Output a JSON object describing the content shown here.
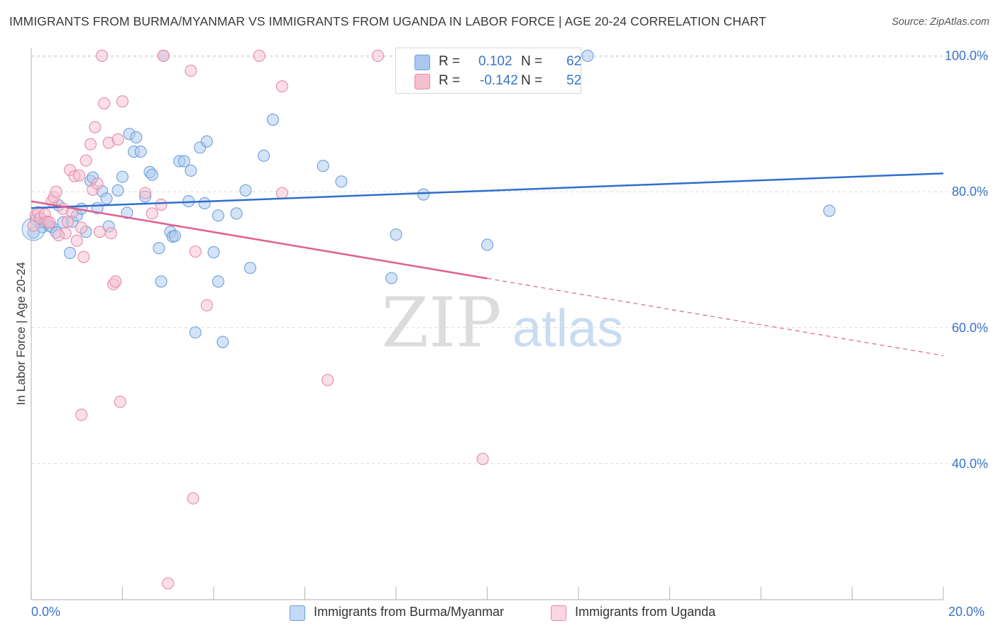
{
  "title": "IMMIGRANTS FROM BURMA/MYANMAR VS IMMIGRANTS FROM UGANDA IN LABOR FORCE | AGE 20-24 CORRELATION CHART",
  "source": "Source: ZipAtlas.com",
  "watermark": {
    "zip": "ZIP",
    "atlas": "atlas"
  },
  "legend": {
    "r_label": "R =",
    "n_label": "N =",
    "rows": [
      {
        "r": "0.102",
        "n": "62"
      },
      {
        "r": "-0.142",
        "n": "52"
      }
    ]
  },
  "colors": {
    "blue_fill": "#aac8ef",
    "blue_stroke": "#6f9fd8",
    "blue_line": "#2f6fcc",
    "pink_fill": "#f6bfd0",
    "pink_stroke": "#e98aa9",
    "pink_line": "#e0608e",
    "axis_label": "#3a74c8",
    "grid": "#d9d9d9"
  },
  "chart_data": {
    "type": "scatter",
    "title": "IMMIGRANTS FROM BURMA/MYANMAR VS IMMIGRANTS FROM UGANDA IN LABOR FORCE | AGE 20-24 CORRELATION CHART",
    "xlabel": "",
    "ylabel": "In Labor Force | Age 20-24",
    "xlim": [
      0,
      20
    ],
    "ylim": [
      20,
      103
    ],
    "x_tick_labels": [
      "0.0%",
      "20.0%"
    ],
    "y_ticks": [
      40,
      60,
      80,
      100
    ],
    "y_tick_labels": [
      "40.0%",
      "60.0%",
      "80.0%",
      "100.0%"
    ],
    "grid": true,
    "legend_position": "top-center",
    "series": [
      {
        "name": "Immigrants from Burma/Myanmar",
        "color": "#aac8ef",
        "trend": {
          "x": [
            0,
            20
          ],
          "y": [
            77.6,
            82.7
          ],
          "dashed_from": null
        },
        "points": [
          {
            "x": 0.05,
            "y": 74.0
          },
          {
            "x": 0.1,
            "y": 75.9
          },
          {
            "x": 0.2,
            "y": 75.5
          },
          {
            "x": 0.25,
            "y": 74.8
          },
          {
            "x": 0.3,
            "y": 75.5
          },
          {
            "x": 0.4,
            "y": 75.0
          },
          {
            "x": 0.45,
            "y": 74.8
          },
          {
            "x": 0.55,
            "y": 74.0
          },
          {
            "x": 0.6,
            "y": 78.0
          },
          {
            "x": 0.7,
            "y": 75.5
          },
          {
            "x": 0.85,
            "y": 71.0
          },
          {
            "x": 0.9,
            "y": 75.6
          },
          {
            "x": 1.0,
            "y": 76.5
          },
          {
            "x": 1.1,
            "y": 77.5
          },
          {
            "x": 1.2,
            "y": 74.1
          },
          {
            "x": 1.3,
            "y": 81.6
          },
          {
            "x": 1.35,
            "y": 82.1
          },
          {
            "x": 1.45,
            "y": 77.6
          },
          {
            "x": 1.55,
            "y": 80.1
          },
          {
            "x": 1.65,
            "y": 79.0
          },
          {
            "x": 1.7,
            "y": 74.9
          },
          {
            "x": 1.9,
            "y": 80.2
          },
          {
            "x": 2.0,
            "y": 82.2
          },
          {
            "x": 2.1,
            "y": 76.9
          },
          {
            "x": 2.15,
            "y": 88.5
          },
          {
            "x": 2.25,
            "y": 85.9
          },
          {
            "x": 2.3,
            "y": 88.0
          },
          {
            "x": 2.4,
            "y": 85.9
          },
          {
            "x": 2.5,
            "y": 79.3
          },
          {
            "x": 2.6,
            "y": 82.9
          },
          {
            "x": 2.65,
            "y": 82.5
          },
          {
            "x": 2.8,
            "y": 71.7
          },
          {
            "x": 2.85,
            "y": 66.8
          },
          {
            "x": 2.9,
            "y": 100.0
          },
          {
            "x": 3.05,
            "y": 74.1
          },
          {
            "x": 3.1,
            "y": 73.4
          },
          {
            "x": 3.15,
            "y": 73.5
          },
          {
            "x": 3.25,
            "y": 84.5
          },
          {
            "x": 3.35,
            "y": 84.5
          },
          {
            "x": 3.45,
            "y": 78.6
          },
          {
            "x": 3.5,
            "y": 83.1
          },
          {
            "x": 3.6,
            "y": 59.3
          },
          {
            "x": 3.7,
            "y": 86.5
          },
          {
            "x": 3.8,
            "y": 78.3
          },
          {
            "x": 3.85,
            "y": 87.4
          },
          {
            "x": 4.0,
            "y": 71.1
          },
          {
            "x": 4.1,
            "y": 76.5
          },
          {
            "x": 4.1,
            "y": 66.8
          },
          {
            "x": 4.2,
            "y": 57.9
          },
          {
            "x": 4.5,
            "y": 76.8
          },
          {
            "x": 4.7,
            "y": 80.2
          },
          {
            "x": 4.8,
            "y": 68.8
          },
          {
            "x": 5.1,
            "y": 85.3
          },
          {
            "x": 5.3,
            "y": 90.6
          },
          {
            "x": 6.4,
            "y": 83.8
          },
          {
            "x": 6.8,
            "y": 81.5
          },
          {
            "x": 7.9,
            "y": 67.3
          },
          {
            "x": 8.0,
            "y": 73.7
          },
          {
            "x": 8.6,
            "y": 79.6
          },
          {
            "x": 10.0,
            "y": 72.2
          },
          {
            "x": 12.2,
            "y": 100.0
          },
          {
            "x": 17.5,
            "y": 77.2
          }
        ]
      },
      {
        "name": "Immigrants from Uganda",
        "color": "#f6bfd0",
        "trend": {
          "x": [
            0,
            20
          ],
          "y": [
            78.6,
            55.9
          ],
          "dashed_from": 10.0
        },
        "points": [
          {
            "x": 0.05,
            "y": 75.0
          },
          {
            "x": 0.1,
            "y": 76.5
          },
          {
            "x": 0.15,
            "y": 77.0
          },
          {
            "x": 0.2,
            "y": 76.1
          },
          {
            "x": 0.3,
            "y": 76.7
          },
          {
            "x": 0.35,
            "y": 75.6
          },
          {
            "x": 0.4,
            "y": 75.5
          },
          {
            "x": 0.45,
            "y": 78.6
          },
          {
            "x": 0.5,
            "y": 79.2
          },
          {
            "x": 0.55,
            "y": 80.0
          },
          {
            "x": 0.7,
            "y": 77.5
          },
          {
            "x": 0.75,
            "y": 73.9
          },
          {
            "x": 0.8,
            "y": 75.6
          },
          {
            "x": 0.85,
            "y": 83.2
          },
          {
            "x": 0.9,
            "y": 77.0
          },
          {
            "x": 0.95,
            "y": 82.3
          },
          {
            "x": 1.0,
            "y": 72.8
          },
          {
            "x": 1.05,
            "y": 82.4
          },
          {
            "x": 1.1,
            "y": 74.7
          },
          {
            "x": 1.15,
            "y": 70.4
          },
          {
            "x": 1.2,
            "y": 84.6
          },
          {
            "x": 1.3,
            "y": 87.0
          },
          {
            "x": 1.35,
            "y": 80.3
          },
          {
            "x": 1.4,
            "y": 89.5
          },
          {
            "x": 1.45,
            "y": 81.2
          },
          {
            "x": 1.5,
            "y": 74.1
          },
          {
            "x": 1.55,
            "y": 100.0
          },
          {
            "x": 1.6,
            "y": 93.0
          },
          {
            "x": 1.7,
            "y": 87.2
          },
          {
            "x": 1.75,
            "y": 73.9
          },
          {
            "x": 1.8,
            "y": 66.4
          },
          {
            "x": 1.85,
            "y": 66.8
          },
          {
            "x": 1.9,
            "y": 87.7
          },
          {
            "x": 1.95,
            "y": 49.1
          },
          {
            "x": 2.0,
            "y": 93.3
          },
          {
            "x": 2.5,
            "y": 79.8
          },
          {
            "x": 2.65,
            "y": 76.8
          },
          {
            "x": 2.85,
            "y": 78.1
          },
          {
            "x": 2.9,
            "y": 100.0
          },
          {
            "x": 3.0,
            "y": 22.4
          },
          {
            "x": 3.5,
            "y": 97.8
          },
          {
            "x": 3.55,
            "y": 34.9
          },
          {
            "x": 3.6,
            "y": 71.2
          },
          {
            "x": 3.85,
            "y": 63.3
          },
          {
            "x": 5.0,
            "y": 100.0
          },
          {
            "x": 5.5,
            "y": 79.8
          },
          {
            "x": 5.5,
            "y": 95.5
          },
          {
            "x": 6.5,
            "y": 52.3
          },
          {
            "x": 7.6,
            "y": 100.0
          },
          {
            "x": 9.9,
            "y": 40.7
          },
          {
            "x": 1.1,
            "y": 47.2
          },
          {
            "x": 0.6,
            "y": 73.6
          }
        ]
      }
    ]
  }
}
